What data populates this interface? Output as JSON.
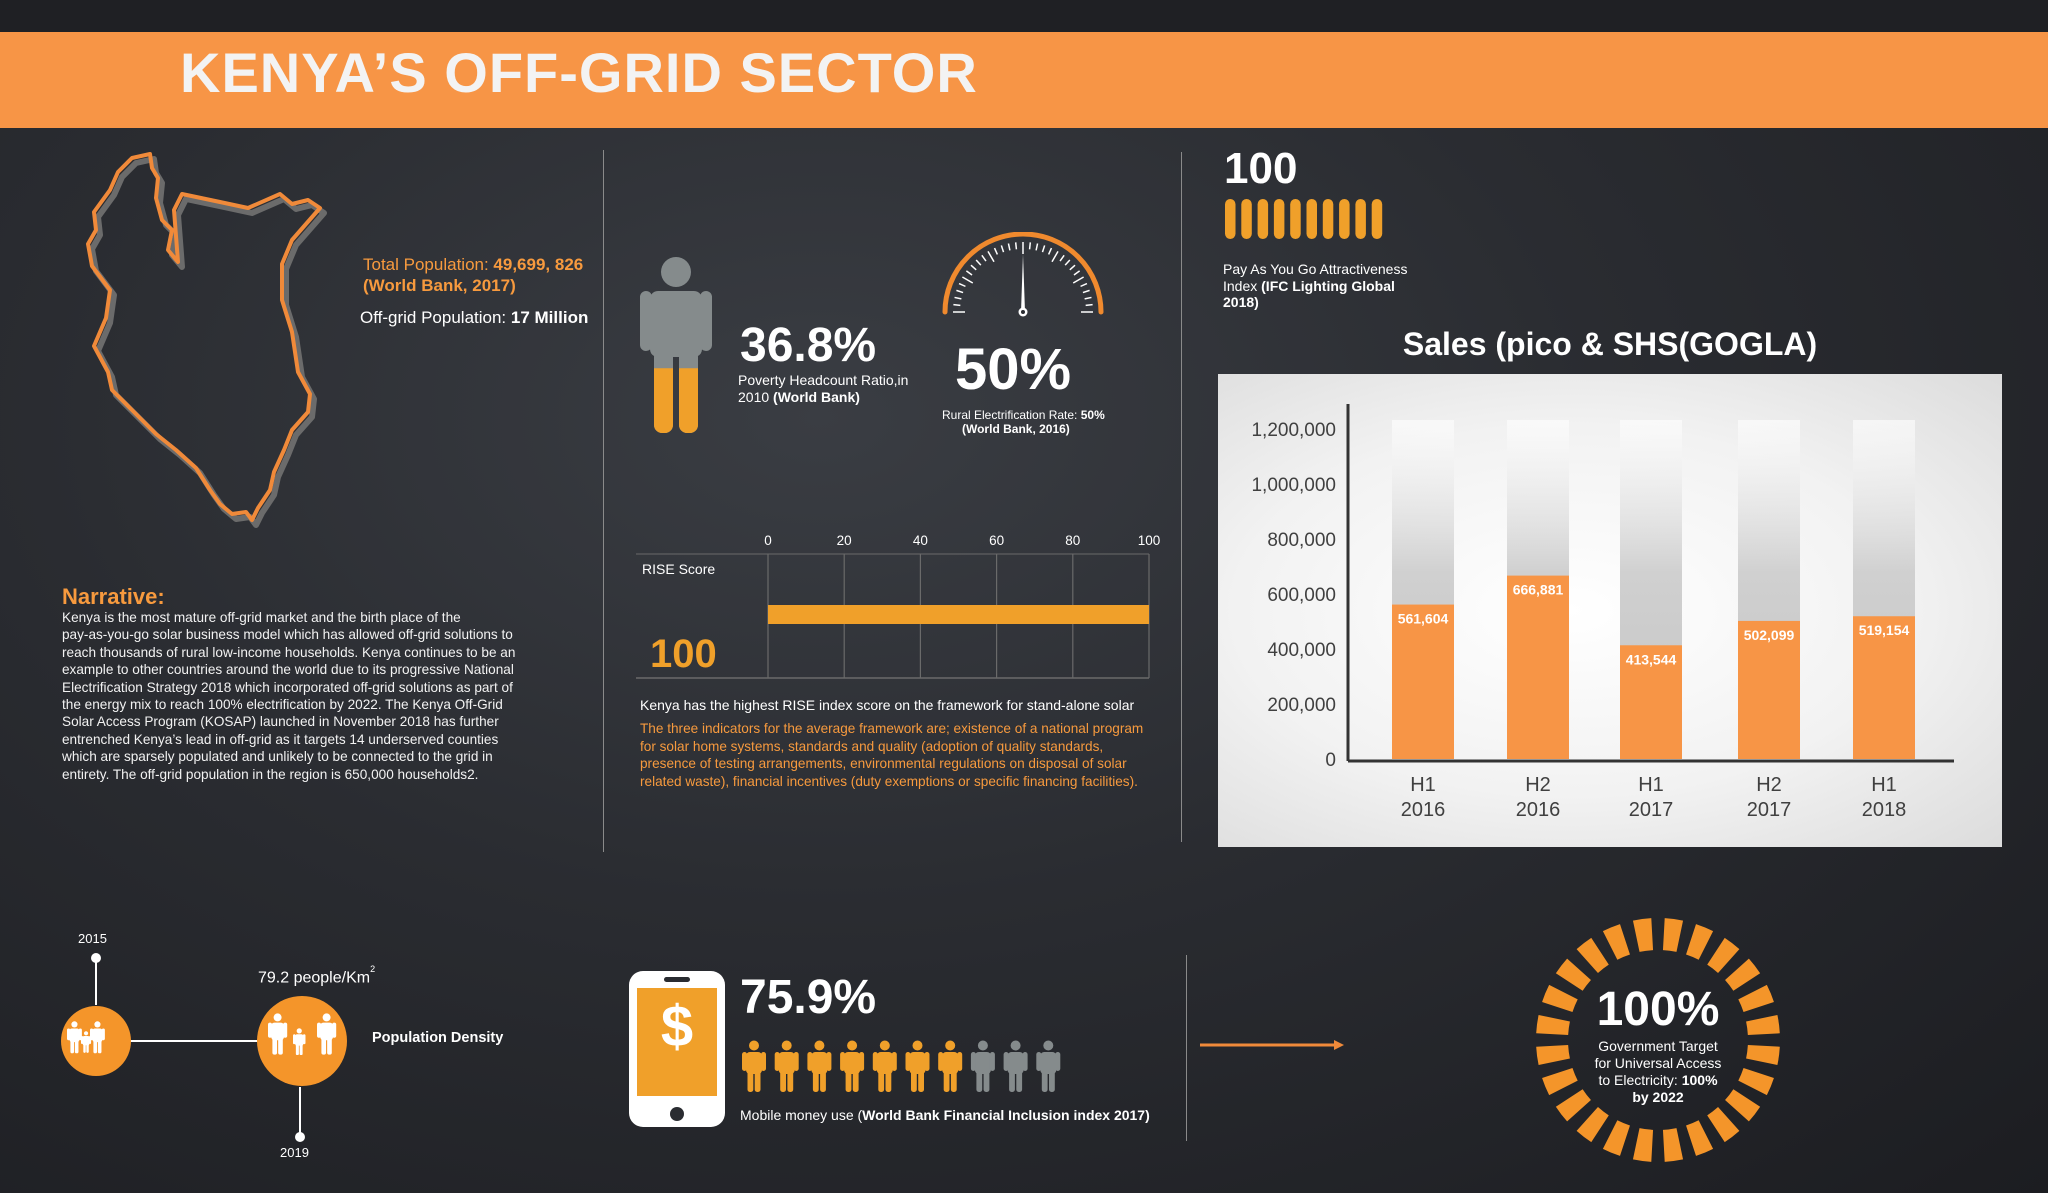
{
  "banner": {
    "title": "KENYA’S OFF-GRID SECTOR"
  },
  "population": {
    "total_label": "Total Population: ",
    "total_value": "49,699, 826",
    "total_source": "(World Bank, 2017)",
    "offgrid_label": "Off-grid Population: ",
    "offgrid_value": "17 Million"
  },
  "narrative": {
    "title": "Narrative:",
    "lines": [
      "Kenya is the most mature off-grid market and the birth place of the",
      "pay-as-you-go solar business model which has allowed off-grid solutions to",
      "reach thousands of rural low-income households. Kenya continues to be an",
      "example to other countries around the world due to its progressive National",
      "Electrification Strategy 2018 which incorporated off-grid solutions as part of",
      "the energy mix to reach 100% electrification by 2022.  The Kenya Off-Grid",
      "Solar Access Program (KOSAP) launched in November 2018 has further",
      "entrenched Kenya’s lead in off-grid as it targets 14 underserved counties",
      "which are sparsely populated and unlikely to be connected to the grid in",
      "entirety. The off-grid population in the region is 650,000 households2."
    ]
  },
  "poverty": {
    "value": "36.8%",
    "fill_fraction": 0.368,
    "label_line1": "Poverty Headcount Ratio,in",
    "label_line2a": "2010 ",
    "label_line2b": "(World Bank)"
  },
  "rural_elec": {
    "value": "50%",
    "gauge_fraction": 0.5,
    "label_a": "Rural Electrification Rate: ",
    "label_b": "50%",
    "label_source": "(World Bank, 2016)"
  },
  "payg": {
    "value": "100",
    "pill_count": 10,
    "label_line1": "Pay As You Go Attractiveness",
    "label_line2a": "Index ",
    "label_line2b": "(IFC Lighting Global",
    "label_line3": "2018)"
  },
  "rise": {
    "label": "RISE Score",
    "value_text": "100",
    "value": 100,
    "ticks": [
      "0",
      "20",
      "40",
      "60",
      "80",
      "100"
    ],
    "xlim": [
      0,
      100
    ],
    "bar_color": "#f0a02a",
    "caption": "Kenya has the highest RISE index score on the framework for stand-alone solar",
    "note_lines": [
      "The three indicators for the average framework are; existence of a national program",
      "for solar home systems, standards and quality (adoption of quality standards,",
      "presence of testing arrangements, environmental regulations on disposal of solar",
      "related waste), financial incentives (duty exemptions or specific financing facilities)."
    ]
  },
  "chart_data": {
    "type": "bar",
    "title": "Sales (pico & SHS(GOGLA)",
    "categories": [
      [
        "H1",
        "2016"
      ],
      [
        "H2",
        "2016"
      ],
      [
        "H1",
        "2017"
      ],
      [
        "H2",
        "2017"
      ],
      [
        "H1",
        "2018"
      ]
    ],
    "values": [
      561604,
      666881,
      413544,
      502099,
      519154
    ],
    "value_labels": [
      "561,604",
      "666,881",
      "413,544",
      "502,099",
      "519,154"
    ],
    "yticks": [
      "0",
      "200,000",
      "400,000",
      "600,000",
      "800,000",
      "1,000,000",
      "1,200,000"
    ],
    "ylim": [
      0,
      1200000
    ],
    "bar_color": "#f79546",
    "xlabel": "",
    "ylabel": "",
    "grid": false
  },
  "density": {
    "year_top": "2015",
    "year_bottom": "2019",
    "value": "79.2 people/Km",
    "superscript": "2",
    "label": "Population Density"
  },
  "mobile_money": {
    "value": "75.9%",
    "people_total": 10,
    "people_orange": 7.5,
    "label_a": "Mobile money use (",
    "label_b": "World Bank Financial Inclusion index 2017)"
  },
  "universal": {
    "value": "100%",
    "lines": [
      "Government Target",
      "for Universal Access"
    ],
    "line3a": "to Electricity: ",
    "line3b": "100%",
    "line4": "by 2022"
  },
  "colors": {
    "accent": "#f79546",
    "gold": "#f0a02a",
    "grey": "#858b8c"
  }
}
